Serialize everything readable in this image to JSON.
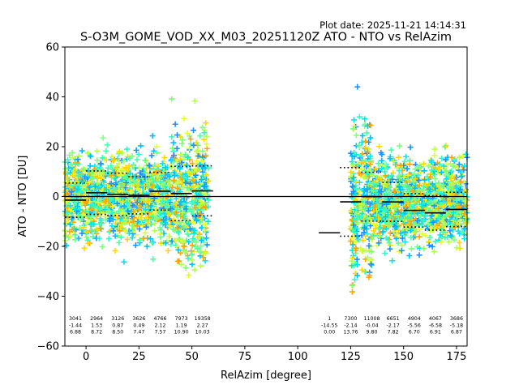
{
  "chart_data": {
    "type": "scatter",
    "plot_date": "Plot date: 2025-11-21 14:14:31",
    "title": "S-O3M_GOME_VOD_XX_M03_20251120Z ATO - NTO vs RelAzim",
    "xlabel": "RelAzim [degree]",
    "ylabel": "ATO - NTO [DU]",
    "xlim": [
      -10,
      180
    ],
    "ylim": [
      -60,
      60
    ],
    "xticks": [
      0,
      25,
      50,
      75,
      100,
      125,
      150,
      175
    ],
    "yticks": [
      -60,
      -40,
      -20,
      0,
      20,
      40,
      60
    ],
    "zero_line": 0,
    "point_colors": [
      "#1e90ff",
      "#00bfff",
      "#00e5ee",
      "#33f5c8",
      "#4dffa6",
      "#7fff7f",
      "#b5ff4d",
      "#e0ff33",
      "#ffd700",
      "#ffa500",
      "#0000ff"
    ],
    "bins": [
      {
        "x_from": -10,
        "x_to": 0,
        "count": "3041",
        "mean": "-1.44",
        "std": "6.88",
        "mean_val": -1.44,
        "std_val": 6.88
      },
      {
        "x_from": 0,
        "x_to": 10,
        "count": "2964",
        "mean": "1.53",
        "std": "8.72",
        "mean_val": 1.53,
        "std_val": 8.72
      },
      {
        "x_from": 10,
        "x_to": 20,
        "count": "3126",
        "mean": "0.87",
        "std": "8.50",
        "mean_val": 0.87,
        "std_val": 8.5
      },
      {
        "x_from": 20,
        "x_to": 30,
        "count": "3626",
        "mean": "0.49",
        "std": "7.47",
        "mean_val": 0.49,
        "std_val": 7.47
      },
      {
        "x_from": 30,
        "x_to": 40,
        "count": "4766",
        "mean": "2.12",
        "std": "7.57",
        "mean_val": 2.12,
        "std_val": 7.57
      },
      {
        "x_from": 40,
        "x_to": 50,
        "count": "7973",
        "mean": "1.19",
        "std": "10.90",
        "mean_val": 1.19,
        "std_val": 10.9
      },
      {
        "x_from": 50,
        "x_to": 60,
        "count": "19358",
        "mean": "2.27",
        "std": "10.03",
        "mean_val": 2.27,
        "std_val": 10.03
      },
      {
        "x_from": 110,
        "x_to": 120,
        "count": "1",
        "mean": "-14.55",
        "std": "0.00",
        "mean_val": -14.55,
        "std_val": 0.0
      },
      {
        "x_from": 120,
        "x_to": 130,
        "count": "7300",
        "mean": "-2.14",
        "std": "13.76",
        "mean_val": -2.14,
        "std_val": 13.76
      },
      {
        "x_from": 130,
        "x_to": 140,
        "count": "11008",
        "mean": "-0.04",
        "std": "9.80",
        "mean_val": -0.04,
        "std_val": 9.8
      },
      {
        "x_from": 140,
        "x_to": 150,
        "count": "6651",
        "mean": "-2.17",
        "std": "7.82",
        "mean_val": -2.17,
        "std_val": 7.82
      },
      {
        "x_from": 150,
        "x_to": 160,
        "count": "4904",
        "mean": "-5.56",
        "std": "6.70",
        "mean_val": -5.56,
        "std_val": 6.7
      },
      {
        "x_from": 160,
        "x_to": 170,
        "count": "4067",
        "mean": "-6.58",
        "std": "6.91",
        "mean_val": -6.58,
        "std_val": 6.91
      },
      {
        "x_from": 170,
        "x_to": 180,
        "count": "3686",
        "mean": "-5.18",
        "std": "6.87",
        "mean_val": -5.18,
        "std_val": 6.87
      }
    ],
    "scatter_regions": [
      {
        "x_from": -10,
        "x_to": 58,
        "y_center": 0,
        "y_spread": 22
      },
      {
        "x_from": 125,
        "x_to": 180,
        "y_center": -2,
        "y_spread": 22
      }
    ]
  }
}
